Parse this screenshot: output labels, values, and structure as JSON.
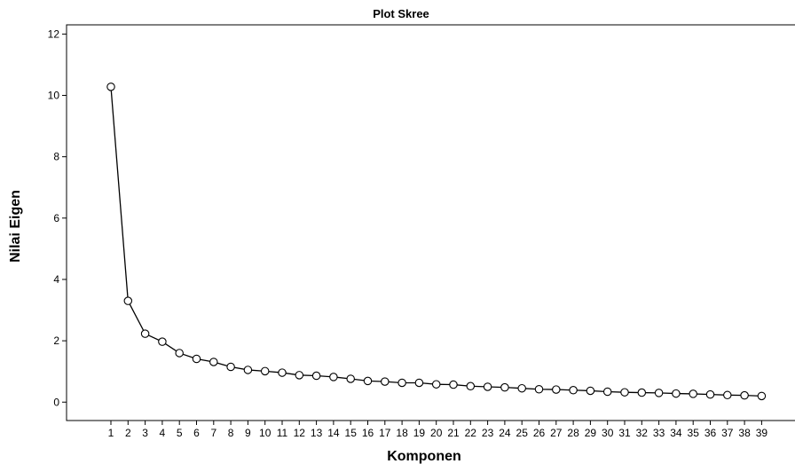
{
  "chart_data": {
    "type": "line",
    "title": "Plot Skree",
    "xlabel": "Komponen",
    "ylabel": "Nilai Eigen",
    "x": [
      1,
      2,
      3,
      4,
      5,
      6,
      7,
      8,
      9,
      10,
      11,
      12,
      13,
      14,
      15,
      16,
      17,
      18,
      19,
      20,
      21,
      22,
      23,
      24,
      25,
      26,
      27,
      28,
      29,
      30,
      31,
      32,
      33,
      34,
      35,
      36,
      37,
      38,
      39
    ],
    "values": [
      10.28,
      3.3,
      2.23,
      1.97,
      1.6,
      1.41,
      1.31,
      1.15,
      1.05,
      1.01,
      0.96,
      0.88,
      0.86,
      0.82,
      0.76,
      0.69,
      0.67,
      0.63,
      0.63,
      0.58,
      0.57,
      0.52,
      0.5,
      0.48,
      0.45,
      0.42,
      0.41,
      0.39,
      0.37,
      0.34,
      0.32,
      0.31,
      0.3,
      0.28,
      0.27,
      0.25,
      0.23,
      0.22,
      0.2
    ],
    "ylim": [
      -0.6,
      12.3
    ],
    "yticks": [
      0,
      2,
      4,
      6,
      8,
      10,
      12
    ],
    "grid": false,
    "marker": "open-circle",
    "line_color": "#000000"
  }
}
